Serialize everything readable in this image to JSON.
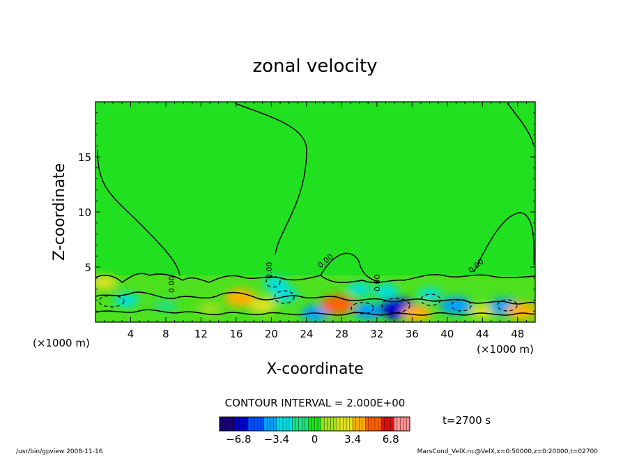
{
  "chart_data": {
    "type": "heatmap",
    "title": "zonal velocity",
    "xlabel": "X-coordinate",
    "ylabel": "Z-coordinate",
    "x_unit": "(×1000 m)",
    "xlim": [
      0,
      50
    ],
    "ylim": [
      0,
      20
    ],
    "x_ticks": [
      4,
      8,
      12,
      16,
      20,
      24,
      28,
      32,
      36,
      40,
      44,
      48
    ],
    "y_ticks": [
      5,
      10,
      15
    ],
    "contour_interval_text": "CONTOUR INTERVAL = 2.000E+00",
    "time_label": "t=2700 s",
    "colorbar": {
      "ticks": [
        -6.8,
        -3.4,
        0,
        3.4,
        6.8
      ],
      "tick_labels": [
        "−6.8",
        "−3.4",
        "0",
        "3.4",
        "6.8"
      ],
      "range": [
        -8.5,
        8.5
      ],
      "colors": [
        "#1a0080",
        "#0000d0",
        "#0050ff",
        "#00a0ff",
        "#00e0e0",
        "#20e080",
        "#20e020",
        "#a0e020",
        "#e0e020",
        "#ffb000",
        "#ff6000",
        "#e01010",
        "#ff9090"
      ]
    },
    "contour_labels": [
      "0.00",
      "0.00",
      "0.00",
      "0.00",
      "0.00"
    ],
    "field_features": [
      {
        "x": 1,
        "z": 3.6,
        "value": 2.5
      },
      {
        "x": 3.5,
        "z": 2.0,
        "value": -2.2
      },
      {
        "x": 8,
        "z": 1.5,
        "value": -1.8
      },
      {
        "x": 13,
        "z": 1.2,
        "value": 1.6
      },
      {
        "x": 16.5,
        "z": 2.2,
        "value": 4.5
      },
      {
        "x": 19,
        "z": 1.5,
        "value": 3.0
      },
      {
        "x": 20.5,
        "z": 3.5,
        "value": -2.5
      },
      {
        "x": 21.5,
        "z": 2.5,
        "value": -3.0
      },
      {
        "x": 25,
        "z": 0.8,
        "value": -3.5
      },
      {
        "x": 27.5,
        "z": 1.6,
        "value": 5.0
      },
      {
        "x": 30,
        "z": 3.0,
        "value": -2.0
      },
      {
        "x": 31,
        "z": 1.0,
        "value": -4.0
      },
      {
        "x": 33,
        "z": 2.8,
        "value": -2.5
      },
      {
        "x": 34.5,
        "z": 1.2,
        "value": -6.5
      },
      {
        "x": 36.5,
        "z": 0.8,
        "value": 4.0
      },
      {
        "x": 38,
        "z": 2.5,
        "value": -2.0
      },
      {
        "x": 41,
        "z": 1.5,
        "value": -4.5
      },
      {
        "x": 44,
        "z": 1.0,
        "value": 2.5
      },
      {
        "x": 46.5,
        "z": 1.4,
        "value": -4.0
      },
      {
        "x": 48.5,
        "z": 1.0,
        "value": 4.5
      }
    ]
  },
  "footer": {
    "left": "/usr/bin/gpview   2008-11-16",
    "right": "MarsCond_VelX.nc@VelX,x=0:50000,z=0:20000,t=02700"
  }
}
